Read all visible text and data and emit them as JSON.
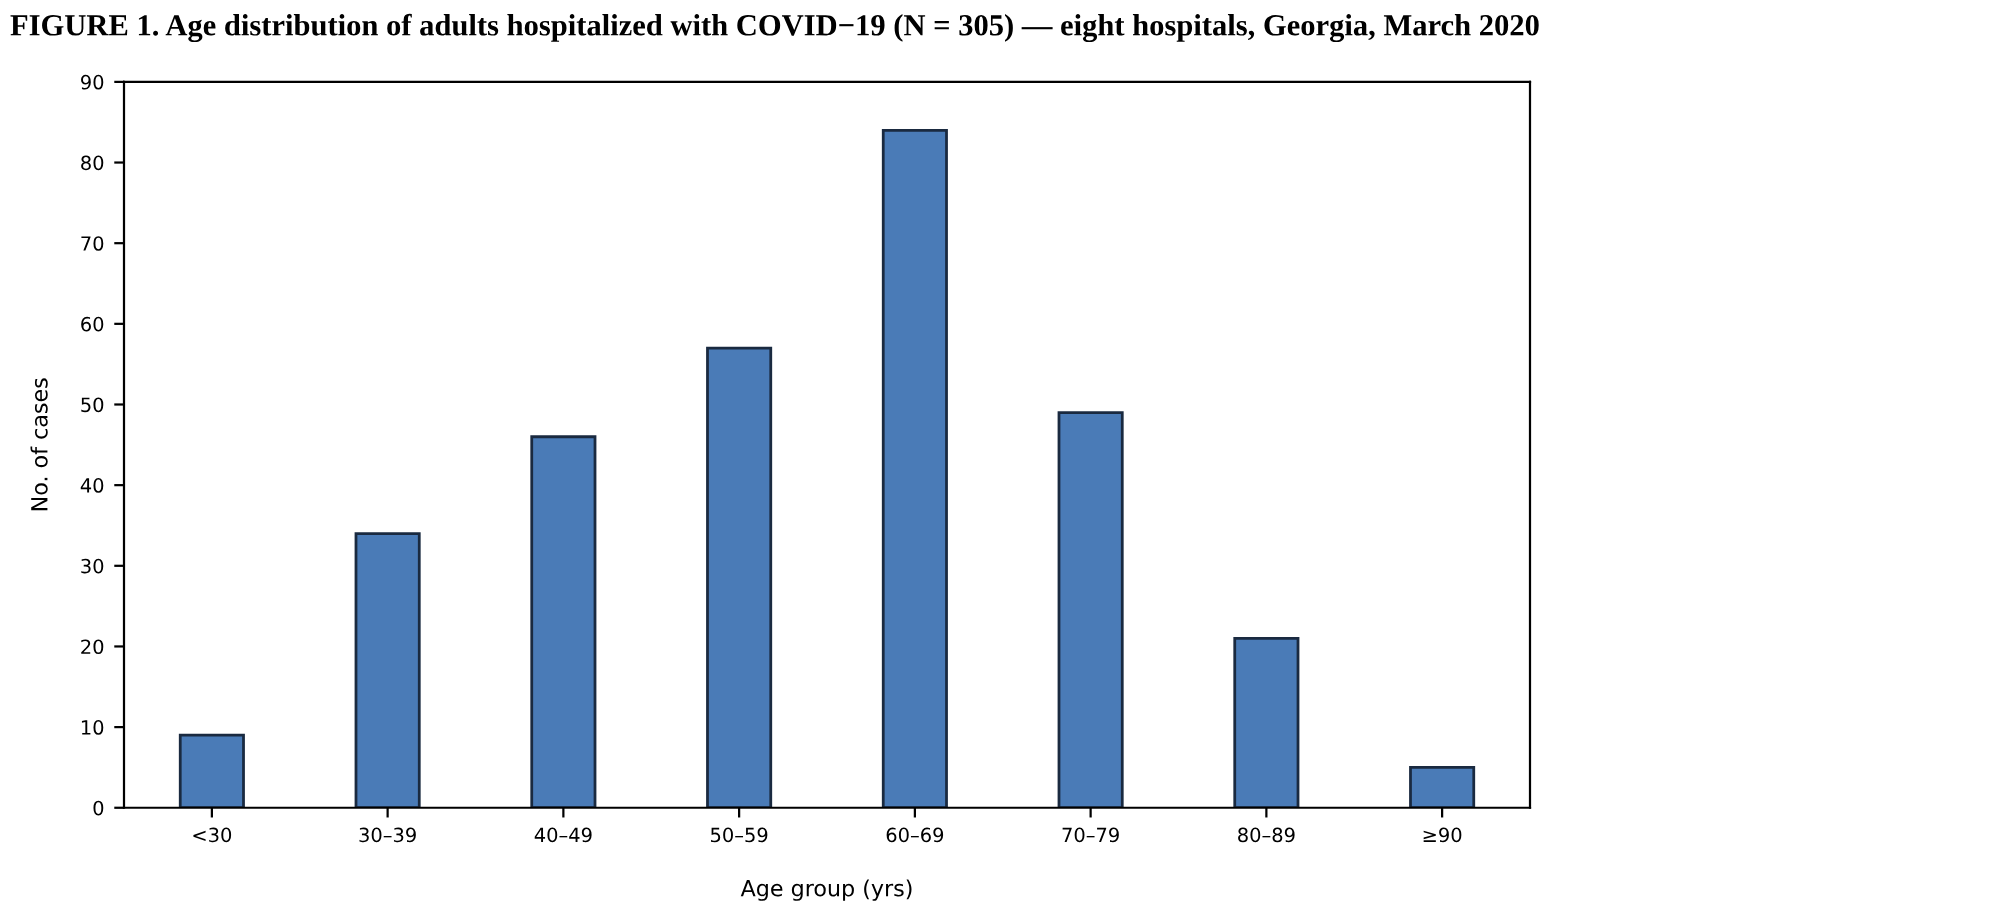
{
  "chart_data": {
    "type": "bar",
    "title": "FIGURE 1. Age distribution of adults hospitalized with COVID−19 (N = 305) — eight hospitals, Georgia, March 2020",
    "xlabel": "Age group (yrs)",
    "ylabel": "No. of cases",
    "categories": [
      "<30",
      "30–39",
      "40–49",
      "50–59",
      "60–69",
      "70–79",
      "80–89",
      "≥90"
    ],
    "values": [
      9,
      34,
      46,
      57,
      84,
      49,
      21,
      5
    ],
    "color": "#4a7bb7",
    "ylim": [
      0,
      90
    ],
    "yticks": [
      0,
      10,
      20,
      30,
      40,
      50,
      60,
      70,
      80,
      90
    ],
    "grid": false
  }
}
